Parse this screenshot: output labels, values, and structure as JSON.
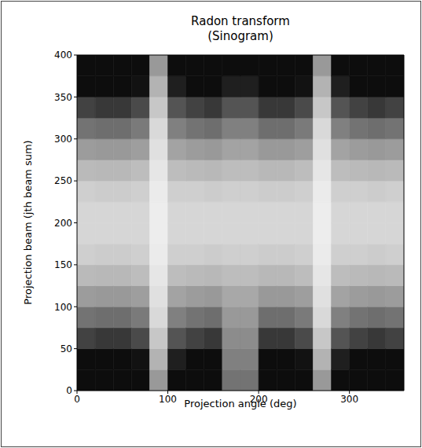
{
  "chart_data": {
    "type": "heatmap",
    "title": "Radon transform\n(Sinogram)",
    "x_label": "Projection angle (deg)",
    "y_label": "Projection beam (jth beam sum)",
    "xlim": [
      0,
      360
    ],
    "ylim": [
      0,
      400
    ],
    "xticks": [
      0,
      100,
      200,
      300
    ],
    "yticks": [
      0,
      50,
      100,
      150,
      200,
      250,
      300,
      350,
      400
    ],
    "zlim": [
      0,
      1
    ],
    "x_edges": [
      0,
      20,
      40,
      60,
      80,
      100,
      120,
      140,
      160,
      180,
      200,
      220,
      240,
      260,
      280,
      300,
      320,
      340,
      360
    ],
    "y_edges": [
      0,
      25,
      50,
      75,
      100,
      125,
      150,
      175,
      200,
      225,
      250,
      275,
      300,
      325,
      350,
      375,
      400
    ],
    "cells": [
      [
        0.05,
        0.05,
        0.26,
        0.45,
        0.61,
        0.73,
        0.81,
        0.84,
        0.84,
        0.81,
        0.73,
        0.61,
        0.45,
        0.26,
        0.05,
        0.05
      ],
      [
        0.05,
        0.05,
        0.22,
        0.43,
        0.6,
        0.72,
        0.8,
        0.84,
        0.84,
        0.8,
        0.72,
        0.6,
        0.43,
        0.22,
        0.05,
        0.05
      ],
      [
        0.05,
        0.05,
        0.22,
        0.43,
        0.6,
        0.72,
        0.8,
        0.84,
        0.84,
        0.8,
        0.72,
        0.6,
        0.43,
        0.22,
        0.05,
        0.05
      ],
      [
        0.05,
        0.07,
        0.29,
        0.48,
        0.62,
        0.74,
        0.81,
        0.84,
        0.84,
        0.81,
        0.74,
        0.62,
        0.48,
        0.29,
        0.07,
        0.05
      ],
      [
        0.6,
        0.7,
        0.78,
        0.85,
        0.88,
        0.9,
        0.92,
        0.93,
        0.93,
        0.92,
        0.9,
        0.88,
        0.85,
        0.78,
        0.7,
        0.6
      ],
      [
        0.05,
        0.12,
        0.33,
        0.5,
        0.64,
        0.74,
        0.81,
        0.84,
        0.84,
        0.81,
        0.74,
        0.64,
        0.5,
        0.33,
        0.12,
        0.05
      ],
      [
        0.05,
        0.05,
        0.26,
        0.45,
        0.61,
        0.73,
        0.81,
        0.84,
        0.84,
        0.81,
        0.73,
        0.61,
        0.45,
        0.26,
        0.05,
        0.05
      ],
      [
        0.05,
        0.05,
        0.22,
        0.43,
        0.6,
        0.72,
        0.8,
        0.84,
        0.84,
        0.8,
        0.72,
        0.6,
        0.43,
        0.22,
        0.05,
        0.05
      ],
      [
        0.45,
        0.5,
        0.55,
        0.6,
        0.66,
        0.74,
        0.81,
        0.84,
        0.84,
        0.81,
        0.74,
        0.64,
        0.5,
        0.33,
        0.12,
        0.05
      ],
      [
        0.45,
        0.5,
        0.55,
        0.6,
        0.66,
        0.74,
        0.81,
        0.84,
        0.84,
        0.81,
        0.74,
        0.64,
        0.5,
        0.33,
        0.12,
        0.05
      ],
      [
        0.05,
        0.05,
        0.22,
        0.43,
        0.6,
        0.72,
        0.8,
        0.84,
        0.84,
        0.8,
        0.72,
        0.6,
        0.43,
        0.22,
        0.05,
        0.05
      ],
      [
        0.05,
        0.05,
        0.22,
        0.43,
        0.6,
        0.72,
        0.8,
        0.84,
        0.84,
        0.8,
        0.72,
        0.6,
        0.43,
        0.22,
        0.05,
        0.05
      ],
      [
        0.05,
        0.07,
        0.29,
        0.48,
        0.62,
        0.74,
        0.81,
        0.84,
        0.84,
        0.81,
        0.74,
        0.62,
        0.48,
        0.29,
        0.07,
        0.05
      ],
      [
        0.6,
        0.7,
        0.78,
        0.85,
        0.88,
        0.9,
        0.92,
        0.93,
        0.93,
        0.92,
        0.9,
        0.88,
        0.85,
        0.78,
        0.7,
        0.6
      ],
      [
        0.05,
        0.12,
        0.33,
        0.5,
        0.64,
        0.74,
        0.81,
        0.84,
        0.84,
        0.81,
        0.74,
        0.64,
        0.5,
        0.33,
        0.12,
        0.05
      ],
      [
        0.05,
        0.05,
        0.26,
        0.45,
        0.61,
        0.73,
        0.81,
        0.84,
        0.84,
        0.81,
        0.73,
        0.61,
        0.45,
        0.26,
        0.05,
        0.05
      ],
      [
        0.05,
        0.05,
        0.22,
        0.43,
        0.6,
        0.72,
        0.8,
        0.84,
        0.84,
        0.8,
        0.72,
        0.6,
        0.43,
        0.22,
        0.05,
        0.05
      ],
      [
        0.05,
        0.05,
        0.26,
        0.45,
        0.61,
        0.73,
        0.81,
        0.84,
        0.84,
        0.81,
        0.73,
        0.61,
        0.45,
        0.26,
        0.05,
        0.05
      ]
    ],
    "tick_labels": true,
    "grid": false
  }
}
